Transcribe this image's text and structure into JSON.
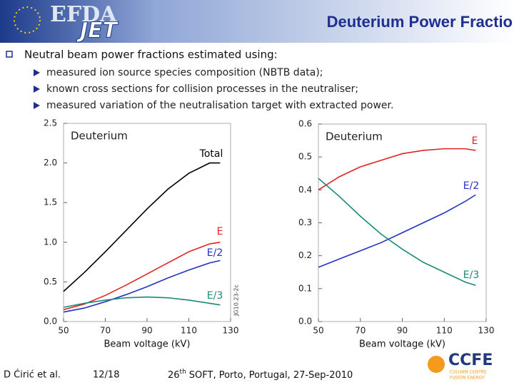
{
  "header": {
    "logo": [
      "EFDA",
      "JET"
    ],
    "title": "Deuterium Power Fractio"
  },
  "bullet": "Neutral beam power fractions estimated using:",
  "sub_bullets": [
    "measured ion source species composition (NBTB data);",
    "known cross sections for collision processes in the neutraliser;",
    "measured variation of the neutralisation target with extracted power."
  ],
  "chart_data": [
    {
      "type": "line",
      "title": "Deuterium",
      "xlabel": "Beam voltage (kV)",
      "annotation": "JG10.23-2c",
      "x": [
        50,
        60,
        70,
        80,
        90,
        100,
        110,
        120,
        125
      ],
      "series": [
        {
          "name": "Total",
          "color": "#000000",
          "values": [
            0.38,
            0.62,
            0.88,
            1.15,
            1.42,
            1.67,
            1.87,
            2.0,
            2.0
          ]
        },
        {
          "name": "E",
          "color": "#e02424",
          "values": [
            0.15,
            0.22,
            0.33,
            0.46,
            0.6,
            0.74,
            0.88,
            0.98,
            1.0
          ]
        },
        {
          "name": "E/2",
          "color": "#2232c0",
          "values": [
            0.12,
            0.17,
            0.25,
            0.34,
            0.44,
            0.55,
            0.65,
            0.74,
            0.77
          ]
        },
        {
          "name": "E/3",
          "color": "#1a8a78",
          "values": [
            0.18,
            0.23,
            0.27,
            0.3,
            0.31,
            0.3,
            0.27,
            0.23,
            0.21
          ]
        }
      ],
      "xlim": [
        50,
        130
      ],
      "xticks": [
        50,
        70,
        90,
        110,
        130
      ],
      "ylim": [
        0,
        2.5
      ],
      "yticks": [
        {
          "value": 0,
          "label": "0.0"
        },
        0.5,
        {
          "value": 1,
          "label": "1.0"
        },
        1.5,
        {
          "value": 2,
          "label": "2.0"
        },
        2.5
      ]
    },
    {
      "type": "line",
      "title": "Deuterium",
      "xlabel": "Beam voltage (kV)",
      "x": [
        50,
        60,
        70,
        80,
        90,
        100,
        110,
        120,
        125
      ],
      "series": [
        {
          "name": "E",
          "color": "#e02424",
          "values": [
            0.4,
            0.44,
            0.47,
            0.49,
            0.51,
            0.52,
            0.525,
            0.525,
            0.52
          ]
        },
        {
          "name": "E/2",
          "color": "#2232c0",
          "values": [
            0.165,
            0.19,
            0.215,
            0.24,
            0.27,
            0.3,
            0.33,
            0.365,
            0.385
          ]
        },
        {
          "name": "E/3",
          "color": "#1a8a78",
          "values": [
            0.435,
            0.38,
            0.32,
            0.265,
            0.22,
            0.18,
            0.15,
            0.12,
            0.11
          ]
        }
      ],
      "xlim": [
        50,
        130
      ],
      "xticks": [
        50,
        70,
        90,
        110,
        130
      ],
      "ylim": [
        0,
        0.6
      ],
      "yticks": [
        {
          "value": 0,
          "label": "0.0"
        },
        0.1,
        0.2,
        0.3,
        0.4,
        0.5,
        0.6
      ]
    }
  ],
  "footer": {
    "author": "D Ćirić et al.",
    "page": "12/18",
    "event_num": "26",
    "event_sup": "th",
    "event_rest": "SOFT, Porto, Portugal, 27-Sep-2010",
    "logo": "CCFE",
    "logo_sub": [
      "CULHAM CENTRE",
      "FUSION ENERGY"
    ]
  }
}
